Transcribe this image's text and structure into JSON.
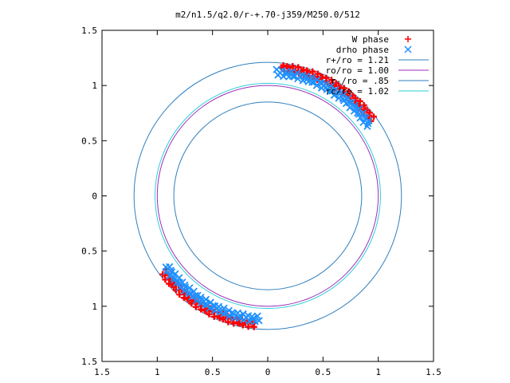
{
  "chart_data": {
    "type": "scatter",
    "title": "m2/n1.5/q2.0/r-+.70-j359/M250.0/512",
    "xlabel": "",
    "ylabel": "",
    "xlim": [
      -1.5,
      1.5
    ],
    "ylim": [
      -1.5,
      1.5
    ],
    "x_ticks": [
      -1.5,
      -1,
      -0.5,
      0,
      0.5,
      1,
      1.5
    ],
    "y_ticks": [
      -1.5,
      -1,
      -0.5,
      0,
      0.5,
      1,
      1.5
    ],
    "x_tick_labels": [
      "1.5",
      "1",
      "0.5",
      "0",
      "0.5",
      "1",
      "1.5"
    ],
    "y_tick_labels": [
      "1.5",
      "1",
      "0.5",
      "0",
      "0.5",
      "1",
      "1.5"
    ],
    "grid": false,
    "legend_position": "top-right",
    "series": [
      {
        "name": "W phase",
        "kind": "points",
        "marker": "+",
        "color": "#ff0000",
        "arcs": [
          {
            "r_min": 1.13,
            "r_max": 1.21,
            "theta_start_deg": 84,
            "theta_end_deg": 36
          },
          {
            "r_min": 1.13,
            "r_max": 1.21,
            "theta_start_deg": 264,
            "theta_end_deg": 216
          }
        ]
      },
      {
        "name": "drho phase",
        "kind": "points",
        "marker": "x",
        "color": "#1e90ff",
        "arcs": [
          {
            "r_min": 1.08,
            "r_max": 1.16,
            "theta_start_deg": 86,
            "theta_end_deg": 35
          },
          {
            "r_min": 1.08,
            "r_max": 1.16,
            "theta_start_deg": 266,
            "theta_end_deg": 215
          }
        ]
      },
      {
        "name": "r+/ro = 1.21",
        "kind": "circle",
        "radius": 1.21,
        "color": "#2f7fbf"
      },
      {
        "name": "ro/ro = 1.00",
        "kind": "circle",
        "radius": 1.0,
        "color": "#9a2fbf"
      },
      {
        "name": "r-/ro = .85",
        "kind": "circle",
        "radius": 0.85,
        "color": "#2f7fbf"
      },
      {
        "name": "rc/ro = 1.02",
        "kind": "circle",
        "radius": 1.02,
        "color": "#2fcfd8"
      }
    ]
  }
}
